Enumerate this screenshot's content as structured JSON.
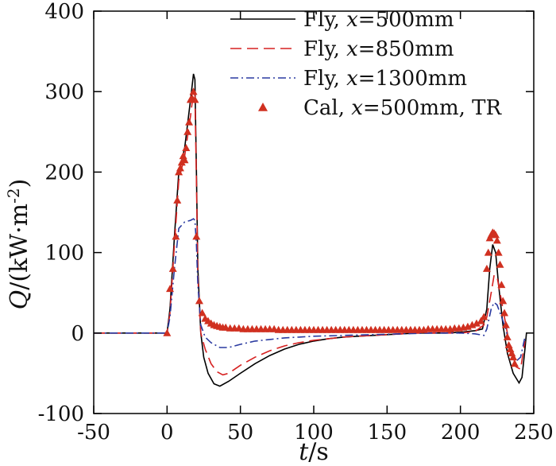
{
  "chart_data": {
    "type": "line",
    "title": "",
    "xlabel_italic": "t",
    "xlabel_rest": "/s",
    "ylabel_italic": "Q",
    "ylabel_rest": "/(kW·m",
    "ylabel_sup": "-2",
    "ylabel_close": ")",
    "xlim": [
      -50,
      250
    ],
    "ylim": [
      -100,
      400
    ],
    "xticks": [
      -50,
      0,
      50,
      100,
      150,
      200,
      250
    ],
    "yticks": [
      -100,
      0,
      100,
      200,
      300,
      400
    ],
    "xtick_labels": [
      "-50",
      "0",
      "50",
      "100",
      "150",
      "200",
      "250"
    ],
    "ytick_labels": [
      "-100",
      "0",
      "100",
      "200",
      "300",
      "400"
    ],
    "legend_position": "top-right",
    "series": [
      {
        "name": "Fly, x=500mm",
        "legend_prefix": "Fly, ",
        "legend_var": "x",
        "legend_suffix": "=500mm",
        "style": "solid",
        "color": "#000000",
        "points": [
          [
            -50,
            0
          ],
          [
            0,
            0
          ],
          [
            2,
            30
          ],
          [
            5,
            120
          ],
          [
            8,
            200
          ],
          [
            12,
            230
          ],
          [
            16,
            290
          ],
          [
            18,
            322
          ],
          [
            19,
            315
          ],
          [
            20,
            200
          ],
          [
            21,
            80
          ],
          [
            23,
            0
          ],
          [
            25,
            -30
          ],
          [
            28,
            -50
          ],
          [
            32,
            -63
          ],
          [
            36,
            -66
          ],
          [
            42,
            -60
          ],
          [
            50,
            -50
          ],
          [
            60,
            -38
          ],
          [
            70,
            -28
          ],
          [
            80,
            -20
          ],
          [
            90,
            -14
          ],
          [
            100,
            -10
          ],
          [
            110,
            -7
          ],
          [
            120,
            -5
          ],
          [
            130,
            -4
          ],
          [
            140,
            -3
          ],
          [
            150,
            -2
          ],
          [
            160,
            -1
          ],
          [
            170,
            0
          ],
          [
            180,
            0
          ],
          [
            190,
            0
          ],
          [
            200,
            1
          ],
          [
            210,
            3
          ],
          [
            215,
            5
          ],
          [
            218,
            30
          ],
          [
            220,
            80
          ],
          [
            222,
            110
          ],
          [
            224,
            100
          ],
          [
            226,
            60
          ],
          [
            229,
            10
          ],
          [
            232,
            -25
          ],
          [
            236,
            -50
          ],
          [
            240,
            -62
          ],
          [
            242,
            -55
          ],
          [
            244,
            -20
          ],
          [
            245,
            0
          ]
        ]
      },
      {
        "name": "Fly, x=850mm",
        "legend_prefix": "Fly, ",
        "legend_var": "x",
        "legend_suffix": "=850mm",
        "style": "dashed",
        "color": "#d62020",
        "points": [
          [
            -50,
            0
          ],
          [
            0,
            0
          ],
          [
            2,
            25
          ],
          [
            5,
            110
          ],
          [
            8,
            190
          ],
          [
            12,
            220
          ],
          [
            16,
            270
          ],
          [
            18,
            300
          ],
          [
            19,
            295
          ],
          [
            20,
            190
          ],
          [
            21,
            70
          ],
          [
            23,
            0
          ],
          [
            26,
            -20
          ],
          [
            30,
            -38
          ],
          [
            34,
            -48
          ],
          [
            38,
            -52
          ],
          [
            42,
            -50
          ],
          [
            50,
            -40
          ],
          [
            60,
            -30
          ],
          [
            70,
            -22
          ],
          [
            80,
            -16
          ],
          [
            90,
            -12
          ],
          [
            100,
            -9
          ],
          [
            110,
            -7
          ],
          [
            120,
            -5
          ],
          [
            130,
            -4
          ],
          [
            140,
            -3
          ],
          [
            150,
            -2
          ],
          [
            160,
            -1
          ],
          [
            170,
            0
          ],
          [
            180,
            0
          ],
          [
            190,
            0
          ],
          [
            200,
            0
          ],
          [
            210,
            2
          ],
          [
            216,
            10
          ],
          [
            218,
            20
          ],
          [
            221,
            50
          ],
          [
            223,
            72
          ],
          [
            225,
            70
          ],
          [
            228,
            40
          ],
          [
            231,
            10
          ],
          [
            234,
            -20
          ],
          [
            238,
            -42
          ],
          [
            241,
            -45
          ],
          [
            244,
            -10
          ]
        ]
      },
      {
        "name": "Fly, x=1300mm",
        "legend_prefix": "Fly, ",
        "legend_var": "x",
        "legend_suffix": "=1300mm",
        "style": "dashdot",
        "color": "#2a3aa0",
        "points": [
          [
            -50,
            0
          ],
          [
            0,
            0
          ],
          [
            2,
            20
          ],
          [
            5,
            80
          ],
          [
            8,
            130
          ],
          [
            12,
            138
          ],
          [
            16,
            140
          ],
          [
            18,
            142
          ],
          [
            19,
            140
          ],
          [
            20,
            110
          ],
          [
            21,
            60
          ],
          [
            23,
            10
          ],
          [
            26,
            -5
          ],
          [
            30,
            -12
          ],
          [
            36,
            -18
          ],
          [
            42,
            -18
          ],
          [
            50,
            -14
          ],
          [
            60,
            -10
          ],
          [
            70,
            -8
          ],
          [
            80,
            -6
          ],
          [
            90,
            -5
          ],
          [
            100,
            -4
          ],
          [
            120,
            -3
          ],
          [
            140,
            -2
          ],
          [
            160,
            -1
          ],
          [
            180,
            0
          ],
          [
            200,
            0
          ],
          [
            210,
            -1
          ],
          [
            216,
            -3
          ],
          [
            218,
            5
          ],
          [
            221,
            30
          ],
          [
            223,
            38
          ],
          [
            225,
            35
          ],
          [
            228,
            20
          ],
          [
            231,
            5
          ],
          [
            234,
            -20
          ],
          [
            238,
            -35
          ],
          [
            241,
            -30
          ],
          [
            244,
            -5
          ]
        ]
      },
      {
        "name": "Cal, x=500mm, TR",
        "legend_prefix": "Cal, ",
        "legend_var": "x",
        "legend_suffix": "=500mm, TR",
        "style": "triangles",
        "color": "#d03020",
        "points": [
          [
            0,
            0
          ],
          [
            2,
            55
          ],
          [
            4,
            80
          ],
          [
            6,
            120
          ],
          [
            7,
            165
          ],
          [
            8,
            200
          ],
          [
            9,
            205
          ],
          [
            10,
            212
          ],
          [
            11,
            220
          ],
          [
            12,
            215
          ],
          [
            13,
            230
          ],
          [
            14,
            250
          ],
          [
            15,
            262
          ],
          [
            16,
            290
          ],
          [
            17,
            292
          ],
          [
            18,
            300
          ],
          [
            19,
            290
          ],
          [
            20,
            120
          ],
          [
            22,
            40
          ],
          [
            24,
            25
          ],
          [
            26,
            18
          ],
          [
            28,
            15
          ],
          [
            30,
            12
          ],
          [
            32,
            10
          ],
          [
            34,
            9
          ],
          [
            36,
            8
          ],
          [
            38,
            7
          ],
          [
            40,
            7
          ],
          [
            43,
            6
          ],
          [
            46,
            6
          ],
          [
            49,
            6
          ],
          [
            52,
            5
          ],
          [
            55,
            5
          ],
          [
            58,
            5
          ],
          [
            61,
            5
          ],
          [
            64,
            5
          ],
          [
            67,
            5
          ],
          [
            70,
            5
          ],
          [
            73,
            5
          ],
          [
            76,
            4
          ],
          [
            79,
            4
          ],
          [
            82,
            4
          ],
          [
            85,
            4
          ],
          [
            88,
            4
          ],
          [
            91,
            4
          ],
          [
            94,
            4
          ],
          [
            97,
            4
          ],
          [
            100,
            4
          ],
          [
            103,
            4
          ],
          [
            106,
            4
          ],
          [
            109,
            4
          ],
          [
            112,
            4
          ],
          [
            115,
            4
          ],
          [
            118,
            4
          ],
          [
            121,
            4
          ],
          [
            124,
            4
          ],
          [
            127,
            4
          ],
          [
            130,
            4
          ],
          [
            133,
            4
          ],
          [
            136,
            4
          ],
          [
            139,
            4
          ],
          [
            142,
            4
          ],
          [
            145,
            4
          ],
          [
            148,
            4
          ],
          [
            151,
            4
          ],
          [
            154,
            4
          ],
          [
            157,
            4
          ],
          [
            160,
            4
          ],
          [
            163,
            4
          ],
          [
            166,
            4
          ],
          [
            169,
            4
          ],
          [
            172,
            4
          ],
          [
            175,
            4
          ],
          [
            178,
            5
          ],
          [
            181,
            5
          ],
          [
            184,
            5
          ],
          [
            187,
            5
          ],
          [
            190,
            5
          ],
          [
            193,
            5
          ],
          [
            196,
            6
          ],
          [
            199,
            6
          ],
          [
            202,
            7
          ],
          [
            205,
            8
          ],
          [
            208,
            10
          ],
          [
            211,
            12
          ],
          [
            214,
            15
          ],
          [
            216,
            20
          ],
          [
            218,
            80
          ],
          [
            219,
            100
          ],
          [
            220,
            118
          ],
          [
            221,
            122
          ],
          [
            222,
            125
          ],
          [
            223,
            124
          ],
          [
            224,
            122
          ],
          [
            225,
            115
          ],
          [
            226,
            100
          ],
          [
            227,
            85
          ],
          [
            228,
            60
          ],
          [
            229,
            40
          ],
          [
            230,
            25
          ],
          [
            231,
            10
          ],
          [
            232,
            -5
          ],
          [
            233,
            -15
          ],
          [
            234,
            -20
          ],
          [
            235,
            -25
          ],
          [
            236,
            -30
          ],
          [
            237,
            -38
          ]
        ]
      }
    ]
  }
}
